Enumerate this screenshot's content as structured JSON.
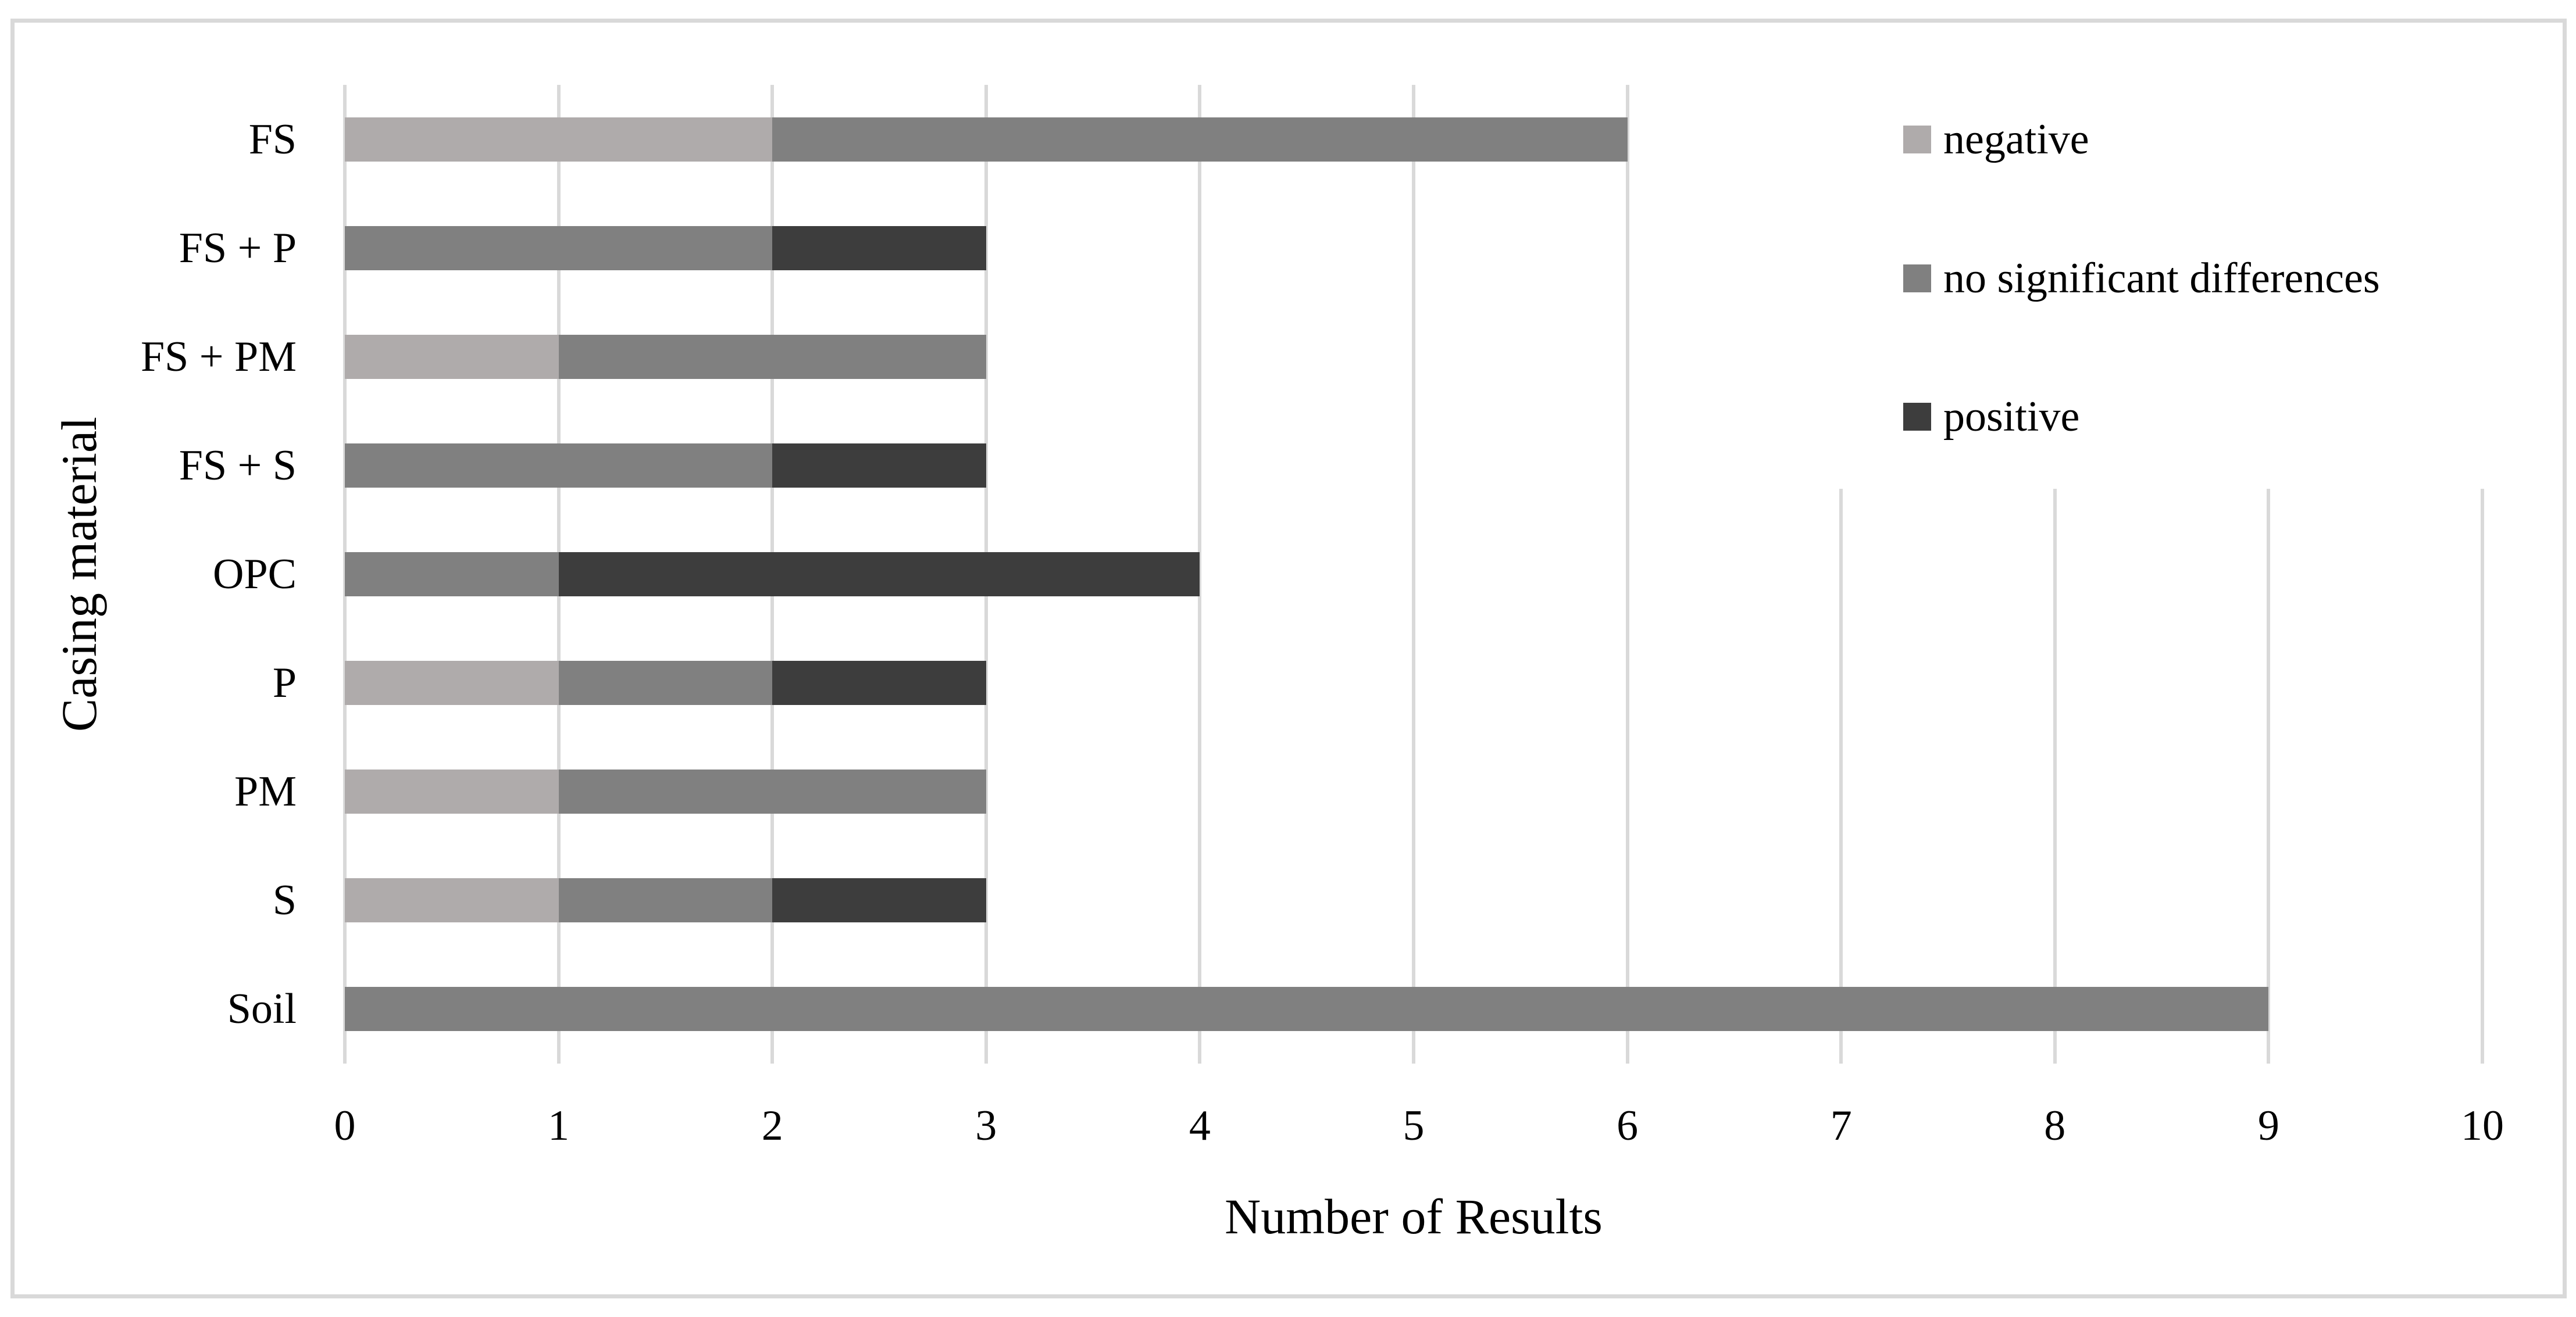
{
  "figure": {
    "background": "#FFFFFF",
    "border_color": "#D9D9D9",
    "grid_color": "#D9D9D9",
    "text_color": "#000000"
  },
  "chart_data": {
    "type": "bar",
    "orientation": "horizontal",
    "stacked": true,
    "title": "",
    "xlabel": "Number of Results",
    "ylabel": "Casing material",
    "categories": [
      "FS",
      "FS + P",
      "FS + PM",
      "FS + S",
      "OPC",
      "P",
      "PM",
      "S",
      "Soil"
    ],
    "series": [
      {
        "name": "negative",
        "color": "#AFABAB",
        "values": [
          2,
          0,
          1,
          0,
          0,
          1,
          1,
          1,
          0
        ]
      },
      {
        "name": "no significant differences",
        "color": "#808080",
        "values": [
          4,
          2,
          2,
          2,
          1,
          1,
          2,
          1,
          9
        ]
      },
      {
        "name": "positive",
        "color": "#3D3D3D",
        "values": [
          0,
          1,
          0,
          1,
          3,
          1,
          0,
          1,
          0
        ]
      }
    ],
    "totals": [
      6,
      3,
      3,
      3,
      4,
      3,
      3,
      3,
      9
    ],
    "x_ticks": [
      "0",
      "1",
      "2",
      "3",
      "4",
      "5",
      "6",
      "7",
      "8",
      "9",
      "10"
    ],
    "xlim": [
      0,
      10
    ],
    "grid": "vertical",
    "legend_position": "upper-right"
  }
}
